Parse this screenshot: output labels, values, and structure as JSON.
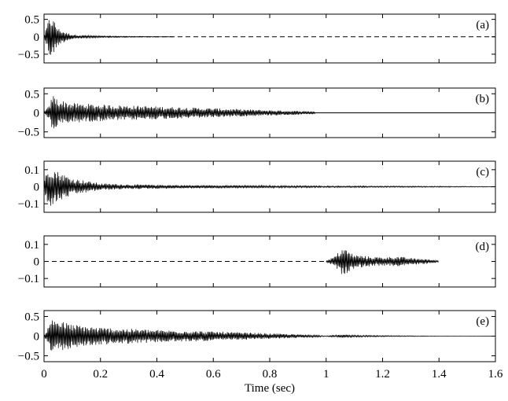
{
  "chart_data": [
    {
      "type": "line",
      "panel_label": "(a)",
      "xlim": [
        0,
        1.6
      ],
      "ylim": [
        -0.75,
        0.65
      ],
      "yticks": [
        -0.5,
        0,
        0.5
      ],
      "ytick_labels": [
        "−0.5",
        "0",
        "0.5"
      ],
      "grid": false,
      "legend": "none",
      "series": [
        {
          "style": "solid-waveform",
          "x": [
            0.0,
            0.02,
            0.03,
            0.05,
            0.08,
            0.1,
            0.15,
            0.2,
            0.3,
            0.4,
            0.46
          ],
          "envelope": [
            0.02,
            0.6,
            0.55,
            0.25,
            0.12,
            0.07,
            0.04,
            0.025,
            0.015,
            0.01,
            0.008
          ]
        },
        {
          "style": "dashed",
          "x": [
            0.0,
            1.6
          ],
          "y": [
            0,
            0
          ]
        }
      ]
    },
    {
      "type": "line",
      "panel_label": "(b)",
      "xlim": [
        0,
        1.6
      ],
      "ylim": [
        -0.65,
        0.65
      ],
      "yticks": [
        -0.5,
        0,
        0.5
      ],
      "ytick_labels": [
        "−0.5",
        "0",
        "0.5"
      ],
      "grid": false,
      "legend": "none",
      "series": [
        {
          "style": "solid-waveform",
          "x": [
            0.0,
            0.02,
            0.03,
            0.05,
            0.1,
            0.2,
            0.4,
            0.6,
            0.8,
            0.96
          ],
          "envelope": [
            0.03,
            0.2,
            0.5,
            0.35,
            0.26,
            0.22,
            0.17,
            0.12,
            0.07,
            0.04
          ]
        },
        {
          "style": "solid",
          "x": [
            0.96,
            1.6
          ],
          "y": [
            0,
            0
          ]
        }
      ]
    },
    {
      "type": "line",
      "panel_label": "(c)",
      "xlim": [
        0,
        1.6
      ],
      "ylim": [
        -0.15,
        0.15
      ],
      "yticks": [
        -0.1,
        0,
        0.1
      ],
      "ytick_labels": [
        "−0.1",
        "0",
        "0.1"
      ],
      "grid": false,
      "legend": "none",
      "series": [
        {
          "style": "solid-waveform",
          "x": [
            0.0,
            0.02,
            0.05,
            0.1,
            0.15,
            0.2,
            0.3,
            0.5,
            0.7,
            0.9,
            1.0,
            1.2,
            1.4,
            1.6
          ],
          "envelope": [
            0.05,
            0.12,
            0.09,
            0.05,
            0.035,
            0.02,
            0.014,
            0.01,
            0.008,
            0.006,
            0.005,
            0.004,
            0.003,
            0.002
          ]
        }
      ]
    },
    {
      "type": "line",
      "panel_label": "(d)",
      "xlim": [
        0,
        1.6
      ],
      "ylim": [
        -0.15,
        0.15
      ],
      "yticks": [
        -0.1,
        0,
        0.1
      ],
      "ytick_labels": [
        "−0.1",
        "0",
        "0.1"
      ],
      "grid": false,
      "legend": "none",
      "series": [
        {
          "style": "dashed",
          "x": [
            0.0,
            1.0
          ],
          "y": [
            0,
            0
          ]
        },
        {
          "style": "solid-waveform",
          "x": [
            1.0,
            1.03,
            1.06,
            1.08,
            1.1,
            1.15,
            1.2,
            1.25,
            1.3,
            1.35,
            1.4
          ],
          "envelope": [
            0.005,
            0.03,
            0.085,
            0.06,
            0.04,
            0.03,
            0.025,
            0.03,
            0.02,
            0.015,
            0.005
          ]
        }
      ]
    },
    {
      "type": "line",
      "panel_label": "(e)",
      "xlim": [
        0,
        1.6
      ],
      "ylim": [
        -0.65,
        0.65
      ],
      "yticks": [
        -0.5,
        0,
        0.5
      ],
      "ytick_labels": [
        "−0.5",
        "0",
        "0.5"
      ],
      "xticks": [
        0,
        0.2,
        0.4,
        0.6,
        0.8,
        1,
        1.2,
        1.4,
        1.6
      ],
      "xtick_labels": [
        "0",
        "0.2",
        "0.4",
        "0.6",
        "0.8",
        "1",
        "1.2",
        "1.4",
        "1.6"
      ],
      "xlabel": "Time (sec)",
      "grid": false,
      "legend": "none",
      "series": [
        {
          "style": "solid-waveform",
          "x": [
            0.0,
            0.02,
            0.03,
            0.05,
            0.1,
            0.2,
            0.4,
            0.6,
            0.8,
            0.96,
            1.0,
            1.06,
            1.1,
            1.2,
            1.4,
            1.6
          ],
          "envelope": [
            0.03,
            0.3,
            0.55,
            0.4,
            0.3,
            0.22,
            0.16,
            0.12,
            0.07,
            0.03,
            0.01,
            0.04,
            0.025,
            0.015,
            0.005,
            0.002
          ]
        }
      ]
    }
  ]
}
